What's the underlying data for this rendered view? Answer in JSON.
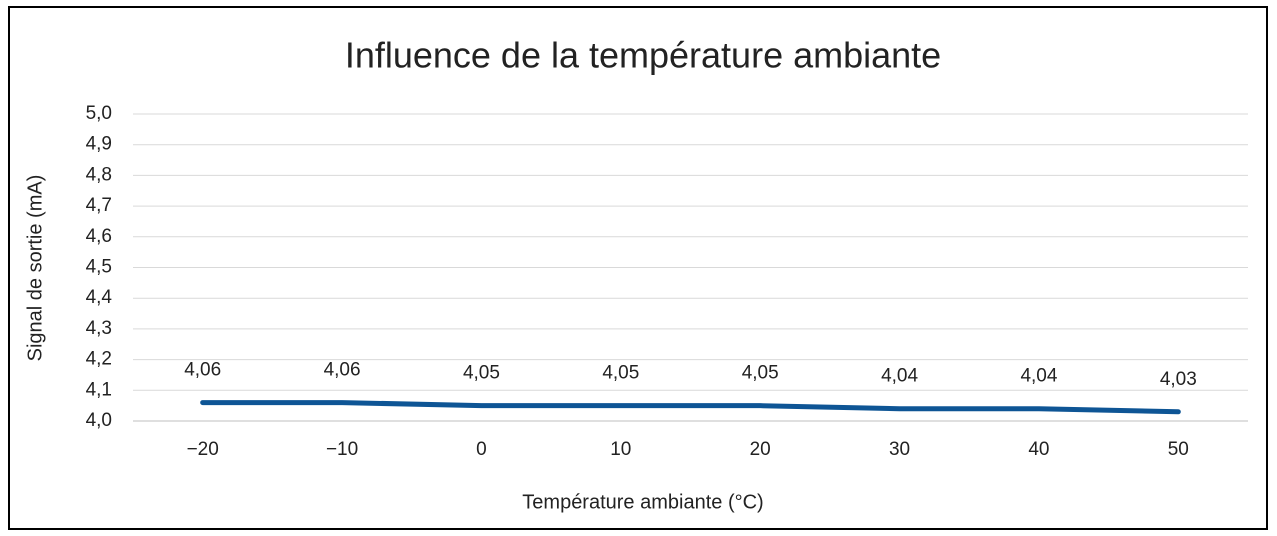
{
  "chart_data": {
    "type": "line",
    "title": "Influence de la température ambiante",
    "x_label": "Température ambiante (°C)",
    "y_label": "Signal de sortie (mA)",
    "categories": [
      "−20",
      "−10",
      "0",
      "10",
      "20",
      "30",
      "40",
      "50"
    ],
    "series": [
      {
        "name": "Signal de sortie (mA)",
        "color": "#0e5595",
        "values": [
          4.06,
          4.06,
          4.05,
          4.05,
          4.05,
          4.04,
          4.04,
          4.03
        ],
        "value_labels": [
          "4,06",
          "4,06",
          "4,05",
          "4,05",
          "4,05",
          "4,04",
          "4,04",
          "4,03"
        ]
      }
    ],
    "ylim": [
      4.0,
      5.0
    ],
    "yticks": [
      {
        "value": 4.0,
        "label": "4,0"
      },
      {
        "value": 4.1,
        "label": "4,1"
      },
      {
        "value": 4.2,
        "label": "4,2"
      },
      {
        "value": 4.3,
        "label": "4,3"
      },
      {
        "value": 4.4,
        "label": "4,4"
      },
      {
        "value": 4.5,
        "label": "4,5"
      },
      {
        "value": 4.6,
        "label": "4,6"
      },
      {
        "value": 4.7,
        "label": "4,7"
      },
      {
        "value": 4.8,
        "label": "4,8"
      },
      {
        "value": 4.9,
        "label": "4,9"
      },
      {
        "value": 5.0,
        "label": "5,0"
      }
    ],
    "grid": true
  }
}
